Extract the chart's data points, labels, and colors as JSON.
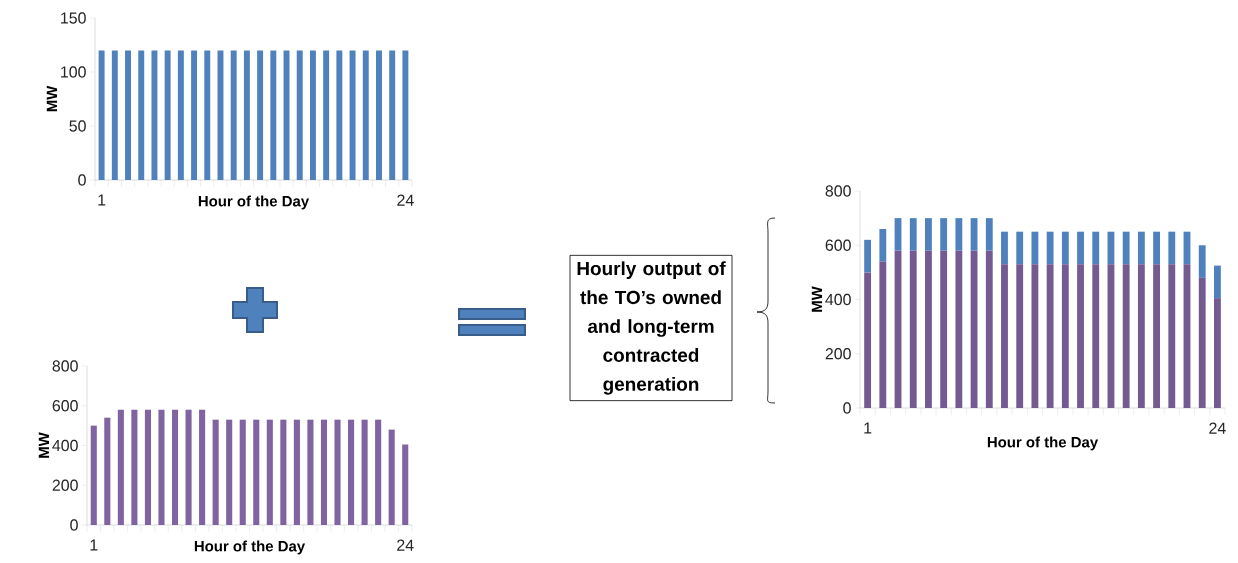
{
  "chart_data": [
    {
      "type": "bar",
      "ylabel": "MW",
      "xlabel": "Hour of the Day",
      "categories": [
        "1",
        null,
        null,
        null,
        null,
        null,
        null,
        null,
        null,
        null,
        null,
        null,
        null,
        null,
        null,
        null,
        null,
        null,
        null,
        null,
        null,
        null,
        null,
        "24"
      ],
      "values": [
        120,
        120,
        120,
        120,
        120,
        120,
        120,
        120,
        120,
        120,
        120,
        120,
        120,
        120,
        120,
        120,
        120,
        120,
        120,
        120,
        120,
        120,
        120,
        120
      ],
      "color": "#4f81bd",
      "ylim": [
        0,
        150
      ],
      "yticks": [
        0,
        50,
        100,
        150
      ]
    },
    {
      "type": "bar",
      "ylabel": "MW",
      "xlabel": "Hour of the Day",
      "categories": [
        "1",
        null,
        null,
        null,
        null,
        null,
        null,
        null,
        null,
        null,
        null,
        null,
        null,
        null,
        null,
        null,
        null,
        null,
        null,
        null,
        null,
        null,
        null,
        "24"
      ],
      "values": [
        500,
        540,
        580,
        580,
        580,
        580,
        580,
        580,
        580,
        530,
        530,
        530,
        530,
        530,
        530,
        530,
        530,
        530,
        530,
        530,
        530,
        530,
        480,
        405
      ],
      "color": "#8064a2",
      "ylim": [
        0,
        800
      ],
      "yticks": [
        0,
        200,
        400,
        600,
        800
      ]
    },
    {
      "type": "bar",
      "stacked": true,
      "ylabel": "MW",
      "xlabel": "Hour of the Day",
      "categories": [
        "1",
        null,
        null,
        null,
        null,
        null,
        null,
        null,
        null,
        null,
        null,
        null,
        null,
        null,
        null,
        null,
        null,
        null,
        null,
        null,
        null,
        null,
        null,
        "24"
      ],
      "series": [
        {
          "color": "#735a90",
          "values": [
            500,
            540,
            580,
            580,
            580,
            580,
            580,
            580,
            580,
            530,
            530,
            530,
            530,
            530,
            530,
            530,
            530,
            530,
            530,
            530,
            530,
            530,
            480,
            405
          ]
        },
        {
          "color": "#4f81bd",
          "values": [
            120,
            120,
            120,
            120,
            120,
            120,
            120,
            120,
            120,
            120,
            120,
            120,
            120,
            120,
            120,
            120,
            120,
            120,
            120,
            120,
            120,
            120,
            120,
            120
          ]
        }
      ],
      "ylim": [
        0,
        800
      ],
      "yticks": [
        0,
        200,
        400,
        600,
        800
      ],
      "annotations": [
        "Hourly output of the TO’s owned and long-term contracted generation"
      ]
    }
  ]
}
